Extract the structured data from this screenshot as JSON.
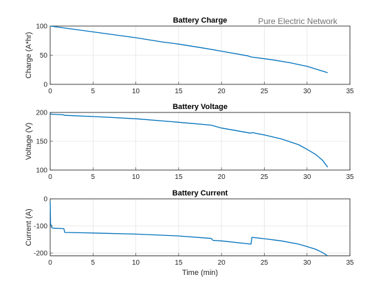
{
  "figure": {
    "annotation": "Pure Electric Network",
    "xlabel": "Time (min)"
  },
  "chart_data": [
    {
      "type": "line",
      "title": "Battery Charge",
      "xlabel": "",
      "ylabel": "Charge (A*hr)",
      "xlim": [
        0,
        35
      ],
      "ylim": [
        0,
        100
      ],
      "xticks": [
        0,
        5,
        10,
        15,
        20,
        25,
        30,
        35
      ],
      "yticks": [
        0,
        50,
        100
      ],
      "grid": true,
      "line_color": "#0072bd",
      "series": [
        {
          "x": [
            0,
            2,
            5,
            8,
            10,
            13,
            15,
            18,
            20,
            23,
            23.5,
            26,
            28,
            30,
            32.4
          ],
          "y": [
            100,
            96,
            90,
            84,
            80,
            73,
            69,
            62,
            57,
            49,
            47,
            42,
            37,
            31,
            20
          ]
        }
      ]
    },
    {
      "type": "line",
      "title": "Battery Voltage",
      "xlabel": "",
      "ylabel": "Voltage (V)",
      "xlim": [
        0,
        35
      ],
      "ylim": [
        100,
        200
      ],
      "xticks": [
        0,
        5,
        10,
        15,
        20,
        25,
        30,
        35
      ],
      "yticks": [
        100,
        150,
        200
      ],
      "grid": true,
      "line_color": "#0072bd",
      "series": [
        {
          "x": [
            0,
            0.1,
            1.5,
            1.7,
            5,
            10,
            15,
            18.8,
            19,
            20,
            23.4,
            23.6,
            25,
            27,
            29,
            30,
            31,
            31.8,
            32.4
          ],
          "y": [
            199,
            197,
            196,
            195,
            193,
            189,
            183,
            178,
            177,
            173,
            164,
            165,
            161,
            154,
            144,
            136,
            127,
            117,
            105
          ]
        }
      ]
    },
    {
      "type": "line",
      "title": "Battery Current",
      "xlabel": "Time (min)",
      "ylabel": "Current (A)",
      "xlim": [
        0,
        35
      ],
      "ylim": [
        -210,
        0
      ],
      "xticks": [
        0,
        5,
        10,
        15,
        20,
        25,
        30,
        35
      ],
      "yticks": [
        -200,
        -100,
        0
      ],
      "grid": true,
      "line_color": "#0072bd",
      "series": [
        {
          "x": [
            0,
            0.05,
            0.15,
            0.3,
            1.6,
            1.7,
            5,
            10,
            15,
            18.8,
            19,
            20,
            23.45,
            23.55,
            25,
            27,
            29,
            30,
            31,
            31.8,
            32.4
          ],
          "y": [
            -10,
            -90,
            -105,
            -108,
            -110,
            -124,
            -126,
            -130,
            -137,
            -146,
            -153,
            -155,
            -167,
            -142,
            -147,
            -155,
            -167,
            -176,
            -186,
            -198,
            -210
          ]
        }
      ]
    }
  ]
}
